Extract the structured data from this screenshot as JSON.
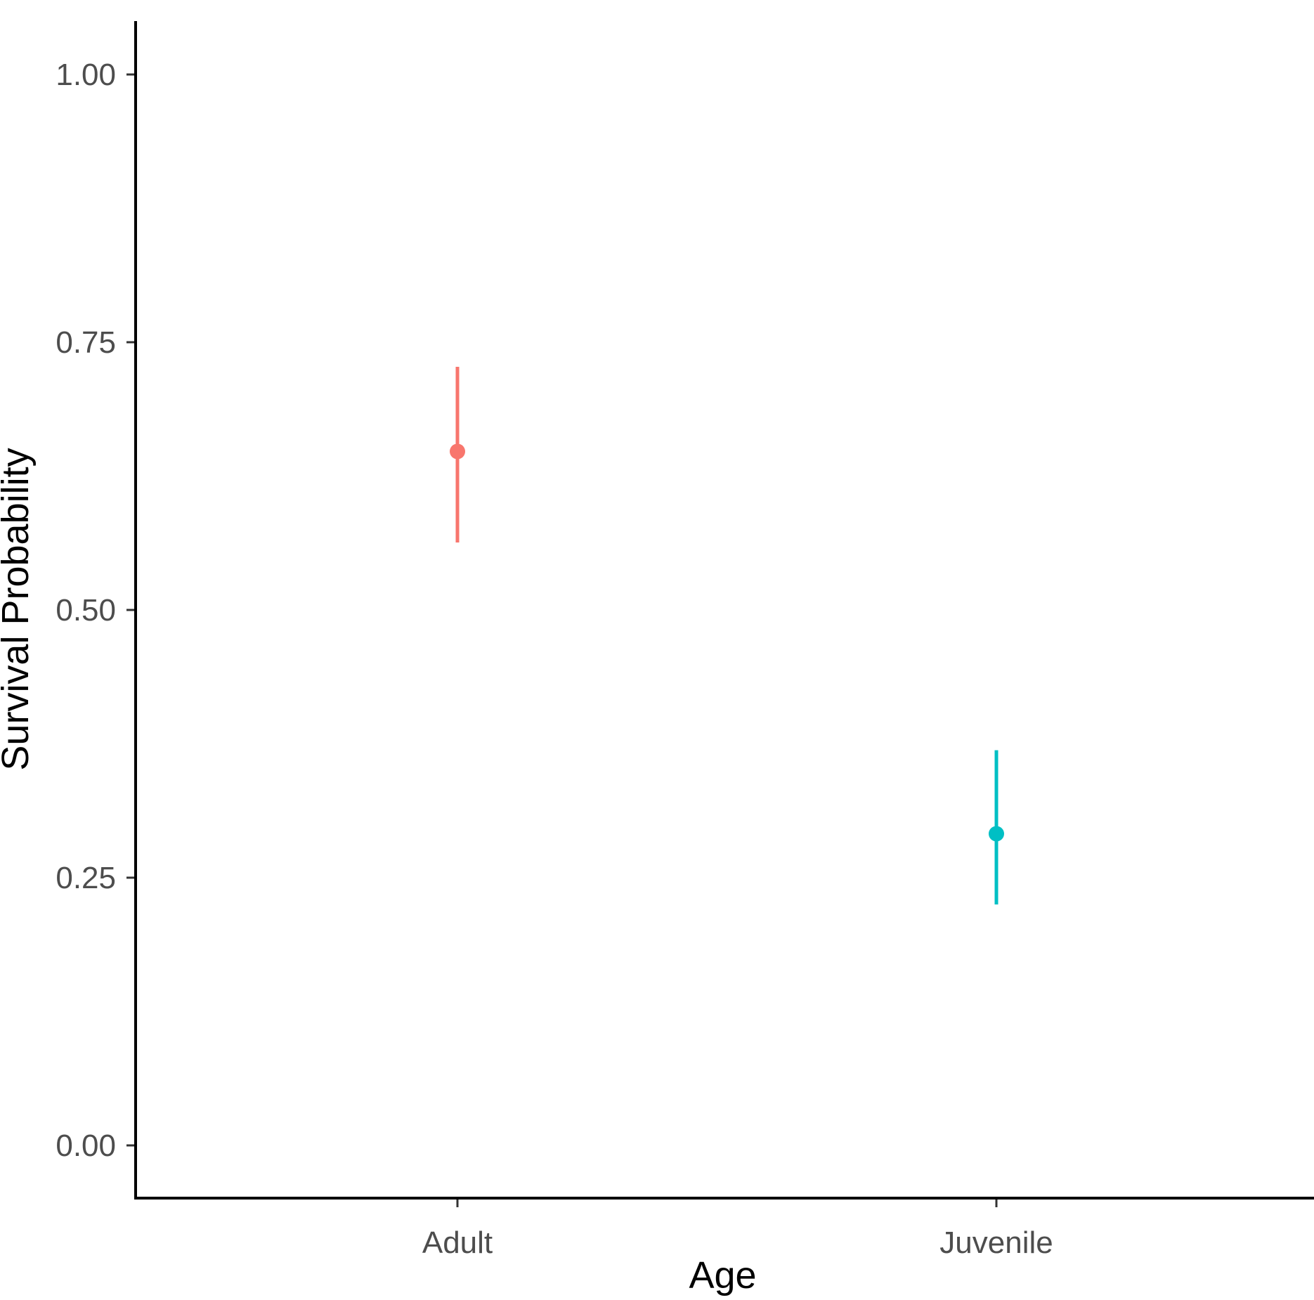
{
  "chart_data": {
    "type": "scatter",
    "title": "",
    "xlabel": "Age",
    "ylabel": "Survival Probability",
    "categories": [
      "Adult",
      "Juvenile"
    ],
    "points": [
      {
        "category": "Adult",
        "value": 0.648,
        "lower": 0.563,
        "upper": 0.727,
        "color": "#F8766D"
      },
      {
        "category": "Juvenile",
        "value": 0.291,
        "lower": 0.225,
        "upper": 0.369,
        "color": "#00BFC4"
      }
    ],
    "y_ticks": [
      {
        "value": 0.0,
        "label": "0.00"
      },
      {
        "value": 0.25,
        "label": "0.25"
      },
      {
        "value": 0.5,
        "label": "0.50"
      },
      {
        "value": 0.75,
        "label": "0.75"
      },
      {
        "value": 1.0,
        "label": "1.00"
      }
    ],
    "ylim": [
      -0.05,
      1.05
    ],
    "grid": false,
    "legend": "none"
  }
}
